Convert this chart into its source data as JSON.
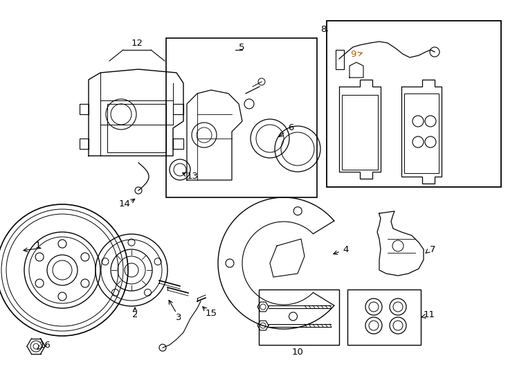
{
  "bg_color": "#ffffff",
  "line_color": "#000000",
  "label_color_9": "#c06000",
  "fig_width": 7.34,
  "fig_height": 5.4,
  "dpi": 100
}
